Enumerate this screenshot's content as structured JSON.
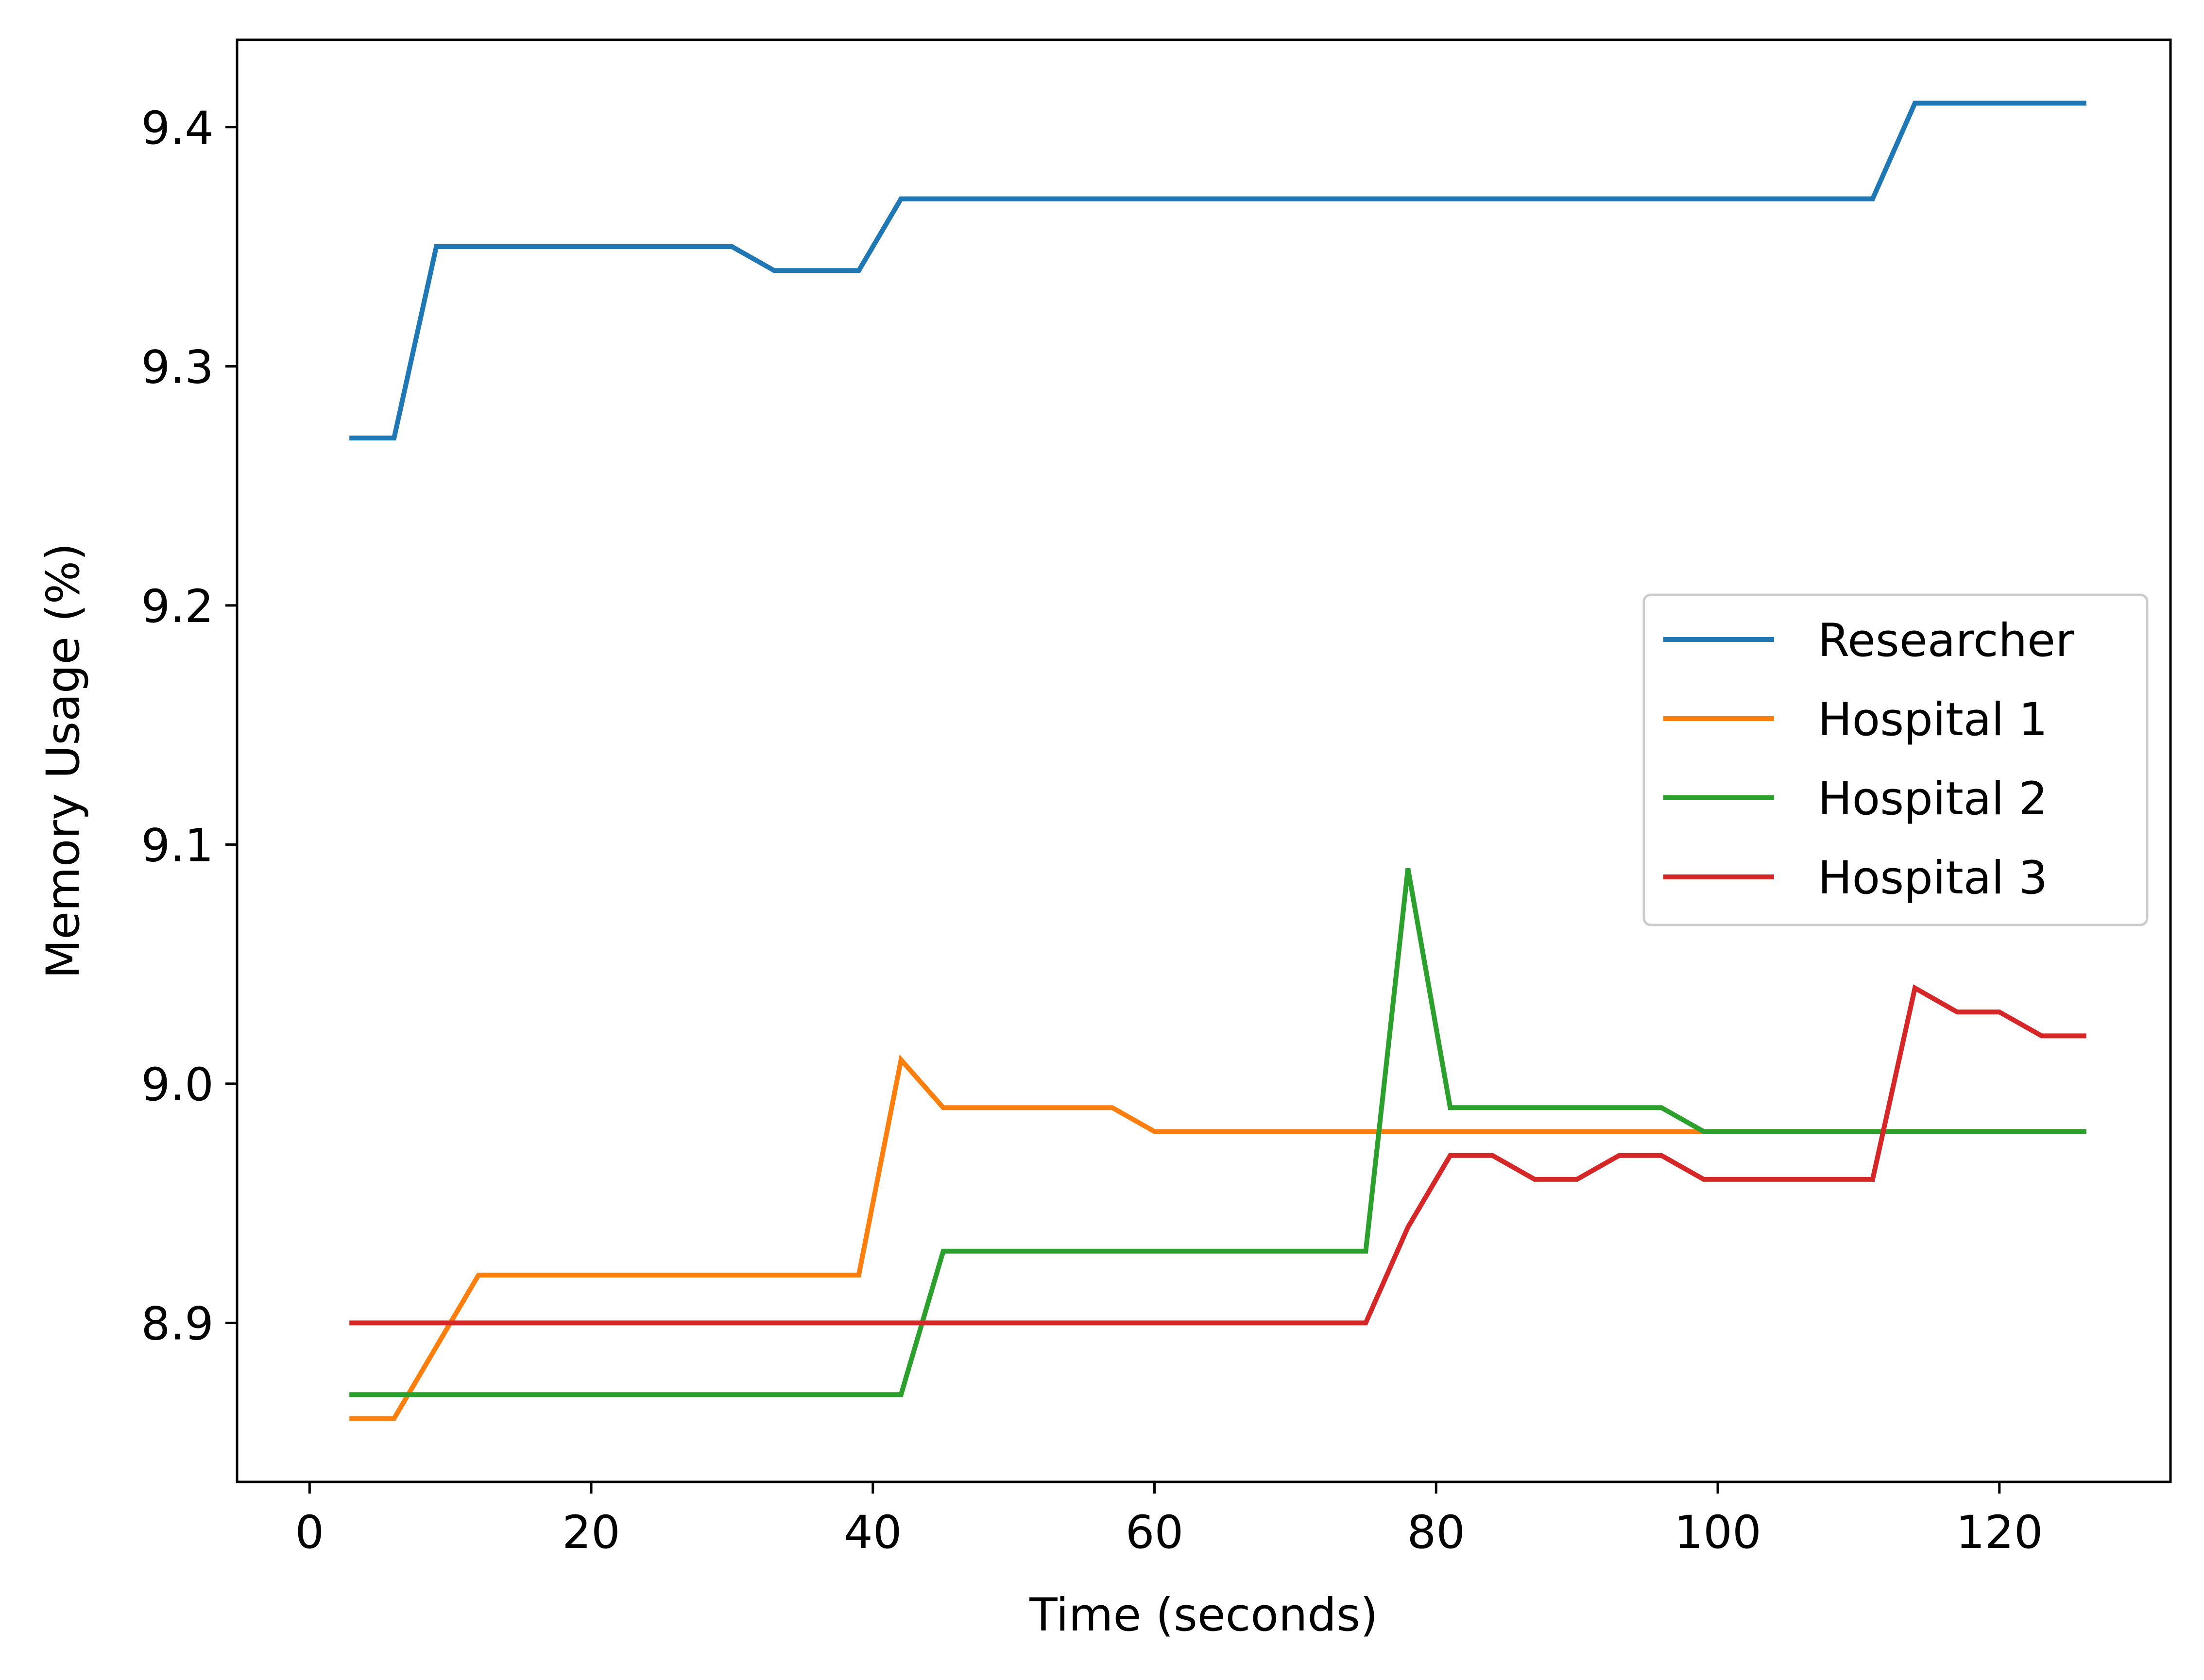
{
  "chart_data": {
    "type": "line",
    "title": "",
    "xlabel": "Time (seconds)",
    "ylabel": "Memory Usage (%)",
    "xlim": [
      -5.15,
      132.15
    ],
    "ylim": [
      8.8335,
      9.4365
    ],
    "xticks": [
      0,
      20,
      40,
      60,
      80,
      100,
      120
    ],
    "xtick_labels": [
      "0",
      "20",
      "40",
      "60",
      "80",
      "100",
      "120"
    ],
    "yticks": [
      8.9,
      9.0,
      9.1,
      9.2,
      9.3,
      9.4
    ],
    "ytick_labels": [
      "8.9",
      "9.0",
      "9.1",
      "9.2",
      "9.3",
      "9.4"
    ],
    "grid": false,
    "legend_position": "center-right",
    "x": [
      3,
      6,
      9,
      12,
      15,
      18,
      21,
      24,
      27,
      30,
      33,
      36,
      39,
      42,
      45,
      48,
      51,
      54,
      57,
      60,
      63,
      66,
      69,
      72,
      75,
      78,
      81,
      84,
      87,
      90,
      93,
      96,
      99,
      102,
      105,
      108,
      111,
      114,
      117,
      120,
      123,
      126
    ],
    "series": [
      {
        "name": "Researcher",
        "color": "#1f77b4",
        "values": [
          9.27,
          9.27,
          9.35,
          9.35,
          9.35,
          9.35,
          9.35,
          9.35,
          9.35,
          9.35,
          9.34,
          9.34,
          9.34,
          9.37,
          9.37,
          9.37,
          9.37,
          9.37,
          9.37,
          9.37,
          9.37,
          9.37,
          9.37,
          9.37,
          9.37,
          9.37,
          9.37,
          9.37,
          9.37,
          9.37,
          9.37,
          9.37,
          9.37,
          9.37,
          9.37,
          9.37,
          9.37,
          9.41,
          9.41,
          9.41,
          9.41,
          9.41
        ]
      },
      {
        "name": "Hospital 1",
        "color": "#ff7f0e",
        "values": [
          8.86,
          8.86,
          8.89,
          8.92,
          8.92,
          8.92,
          8.92,
          8.92,
          8.92,
          8.92,
          8.92,
          8.92,
          8.92,
          9.01,
          8.99,
          8.99,
          8.99,
          8.99,
          8.99,
          8.98,
          8.98,
          8.98,
          8.98,
          8.98,
          8.98,
          8.98,
          8.98,
          8.98,
          8.98,
          8.98,
          8.98,
          8.98,
          8.98,
          8.98,
          8.98,
          8.98,
          8.98,
          8.98,
          8.98,
          8.98,
          8.98,
          8.98
        ]
      },
      {
        "name": "Hospital 2",
        "color": "#2ca02c",
        "values": [
          8.87,
          8.87,
          8.87,
          8.87,
          8.87,
          8.87,
          8.87,
          8.87,
          8.87,
          8.87,
          8.87,
          8.87,
          8.87,
          8.87,
          8.93,
          8.93,
          8.93,
          8.93,
          8.93,
          8.93,
          8.93,
          8.93,
          8.93,
          8.93,
          8.93,
          9.09,
          8.99,
          8.99,
          8.99,
          8.99,
          8.99,
          8.99,
          8.98,
          8.98,
          8.98,
          8.98,
          8.98,
          8.98,
          8.98,
          8.98,
          8.98,
          8.98
        ]
      },
      {
        "name": "Hospital 3",
        "color": "#d62728",
        "values": [
          8.9,
          8.9,
          8.9,
          8.9,
          8.9,
          8.9,
          8.9,
          8.9,
          8.9,
          8.9,
          8.9,
          8.9,
          8.9,
          8.9,
          8.9,
          8.9,
          8.9,
          8.9,
          8.9,
          8.9,
          8.9,
          8.9,
          8.9,
          8.9,
          8.9,
          8.94,
          8.97,
          8.97,
          8.96,
          8.96,
          8.97,
          8.97,
          8.96,
          8.96,
          8.96,
          8.96,
          8.96,
          9.04,
          9.03,
          9.03,
          9.02,
          9.02
        ]
      }
    ]
  }
}
